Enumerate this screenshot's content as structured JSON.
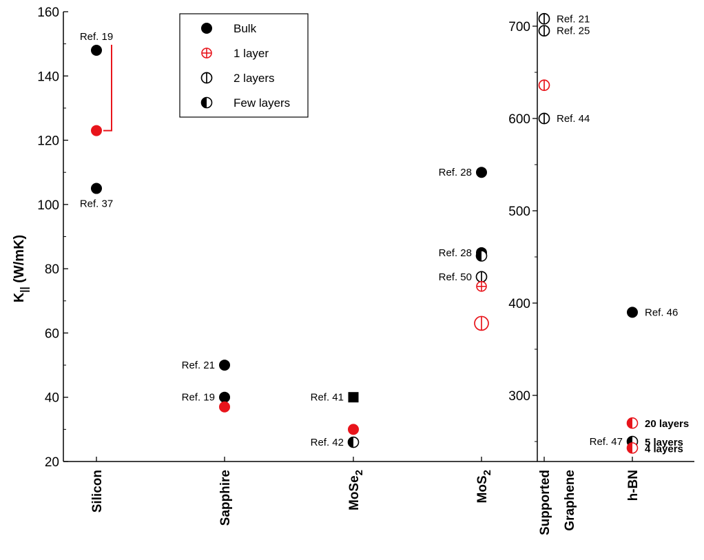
{
  "chart_data": {
    "type": "scatter",
    "ylabel_main": "K",
    "ylabel_sub": "||",
    "ylabel_unit": " (W/mK)",
    "colors": {
      "black": "#000000",
      "red": "#e8141b"
    },
    "legend": [
      {
        "label": "Bulk",
        "marker": "filled"
      },
      {
        "label": "1 layer",
        "marker": "cross-red"
      },
      {
        "label": "2 layers",
        "marker": "vbar"
      },
      {
        "label": "Few layers",
        "marker": "half"
      }
    ],
    "left_panel": {
      "ylim": [
        20,
        160
      ],
      "yticks": [
        20,
        40,
        60,
        80,
        100,
        120,
        140,
        160
      ],
      "categories": [
        {
          "label": "Silicon",
          "sub": ""
        },
        {
          "label": "Sapphire",
          "sub": ""
        },
        {
          "label": "MoSe",
          "sub": "2"
        },
        {
          "label": "MoS",
          "sub": "2"
        }
      ],
      "points": [
        {
          "cat": 0,
          "y": 148,
          "marker": "filled",
          "label": "Ref. 19",
          "label_pos": "above"
        },
        {
          "cat": 0,
          "y": 123,
          "marker": "filled-red",
          "label": "",
          "label_pos": "none"
        },
        {
          "cat": 0,
          "y": 105,
          "marker": "filled",
          "label": "Ref. 37",
          "label_pos": "below"
        },
        {
          "cat": 1,
          "y": 50,
          "marker": "filled",
          "label": "Ref. 21",
          "label_pos": "left"
        },
        {
          "cat": 1,
          "y": 40,
          "marker": "filled",
          "label": "Ref. 19",
          "label_pos": "left"
        },
        {
          "cat": 1,
          "y": 37,
          "marker": "filled-red",
          "label": "",
          "label_pos": "none"
        },
        {
          "cat": 2,
          "y": 40,
          "marker": "square",
          "label": "Ref. 41",
          "label_pos": "left"
        },
        {
          "cat": 2,
          "y": 30,
          "marker": "filled-red",
          "label": "",
          "label_pos": "none"
        },
        {
          "cat": 2,
          "y": 26,
          "marker": "half",
          "label": "Ref. 42",
          "label_pos": "left"
        },
        {
          "cat": 3,
          "y": 110,
          "marker": "filled",
          "label": "Ref. 28",
          "label_pos": "left"
        },
        {
          "cat": 3,
          "y": 85,
          "marker": "filled",
          "label": "Ref. 28",
          "label_pos": "left"
        },
        {
          "cat": 3,
          "y": 84,
          "marker": "half",
          "label": "",
          "label_pos": "none"
        },
        {
          "cat": 3,
          "y": 77.5,
          "marker": "vbar",
          "label": "Ref. 50",
          "label_pos": "left"
        },
        {
          "cat": 3,
          "y": 74.5,
          "marker": "cross-red",
          "label": "",
          "label_pos": "none"
        },
        {
          "cat": 3,
          "y": 63,
          "marker": "vbar-red-big",
          "label": "",
          "label_pos": "none"
        }
      ],
      "bracket": {
        "cat": 0,
        "from": 123,
        "to": 148
      }
    },
    "right_panel": {
      "ylim": [
        240,
        720
      ],
      "yticks": [
        300,
        400,
        500,
        600,
        700
      ],
      "categories": [
        {
          "label": "Supported",
          "sub": ""
        },
        {
          "label": "Graphene",
          "sub": ""
        },
        {
          "label": "h-BN",
          "sub": ""
        }
      ],
      "points": [
        {
          "cat": 0,
          "y": 708,
          "marker": "vbar",
          "label": "Ref. 21",
          "label_pos": "right"
        },
        {
          "cat": 0,
          "y": 695,
          "marker": "vbar",
          "label": "Ref. 25",
          "label_pos": "right"
        },
        {
          "cat": 0,
          "y": 636,
          "marker": "vbar-red",
          "label": "",
          "label_pos": "none"
        },
        {
          "cat": 0,
          "y": 600,
          "marker": "vbar",
          "label": "Ref. 44",
          "label_pos": "right"
        },
        {
          "cat": 2,
          "y": 390,
          "marker": "filled",
          "label": "Ref. 46",
          "label_pos": "right"
        },
        {
          "cat": 2,
          "y": 270,
          "marker": "half-red",
          "label": "20 layers",
          "label_pos": "right-bold"
        },
        {
          "cat": 2,
          "y": 250,
          "marker": "half",
          "label": "5 layers",
          "label_pos": "right-bold"
        },
        {
          "cat": 2,
          "y": 243,
          "marker": "half-red",
          "label": "4 layers",
          "label_pos": "right-bold"
        }
      ],
      "extra_labels": [
        {
          "cat": 2,
          "y": 250,
          "text": "Ref. 47",
          "pos": "left"
        }
      ]
    }
  }
}
